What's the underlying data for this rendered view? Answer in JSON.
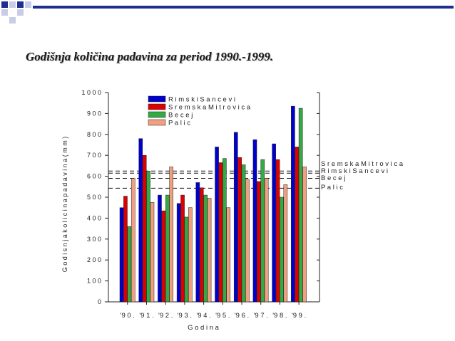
{
  "slide": {
    "title": "Godišnja količina padavina za period 1990.-1999."
  },
  "colors": {
    "Rimski Sancevi": "#0000cc",
    "Sremska Mitrovica": "#dd0000",
    "Becej": "#33aa44",
    "Palic": "#f0a080",
    "deco_dark": "#1f2f8f",
    "deco_light": "#c8cce6"
  },
  "chart_data": {
    "type": "bar",
    "title": "",
    "xlabel": "G o d i n a",
    "ylabel": "G o d i s n j a   k o l i c i n a   p a d a v i n a   ( m m )",
    "ylim": [
      0,
      1000
    ],
    "yticks": [
      0,
      100,
      200,
      300,
      400,
      500,
      600,
      700,
      800,
      900,
      1000
    ],
    "ytick_labels": [
      "0",
      "1 0 0",
      "2 0 0",
      "3 0 0",
      "4 0 0",
      "5 0 0",
      "6 0 0",
      "7 0 0",
      "8 0 0",
      "9 0 0",
      "1 0 0 0"
    ],
    "categories": [
      "'9 0 .",
      "'9 1 .",
      "'9 2 .",
      "'9 3 .",
      "'9 4 .",
      "'9 5 .",
      "'9 6 .",
      "'9 7 .",
      "'9 8 .",
      "'9 9 ."
    ],
    "legend_position": "top-center",
    "legend_labels": [
      "R i m s k i   S a n c e v i",
      "S r e m s k a   M i t r o v i c a",
      "B e c e j",
      "P a l i c"
    ],
    "series": [
      {
        "name": "Rimski Sancevi",
        "values": [
          450,
          780,
          510,
          470,
          570,
          740,
          810,
          775,
          755,
          935
        ]
      },
      {
        "name": "Sremska Mitrovica",
        "values": [
          505,
          700,
          435,
          510,
          545,
          665,
          690,
          575,
          680,
          740
        ]
      },
      {
        "name": "Becej",
        "values": [
          360,
          625,
          510,
          405,
          510,
          685,
          655,
          680,
          500,
          925
        ]
      },
      {
        "name": "Palic",
        "values": [
          590,
          475,
          645,
          450,
          495,
          450,
          585,
          590,
          560,
          645
        ]
      }
    ],
    "reference_lines": [
      {
        "label": "S r e m s k a   M i t r o v i c a",
        "value": 625
      },
      {
        "label": "R i m s k i   S a n c e v i",
        "value": 615
      },
      {
        "label": "B e c e j",
        "value": 590
      },
      {
        "label": "P a l i c",
        "value": 543
      }
    ]
  }
}
